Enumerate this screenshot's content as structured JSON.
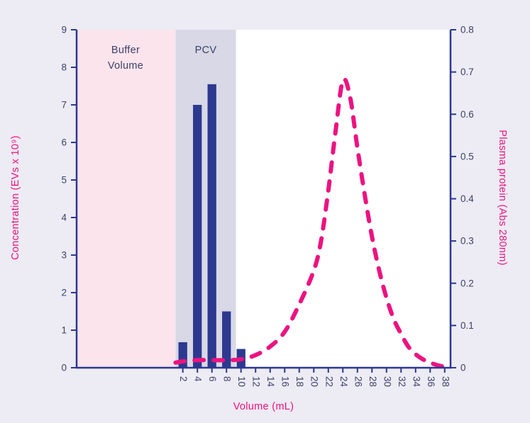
{
  "page": {
    "background_color": "#edebf4"
  },
  "chart_data": {
    "type": "combo-bar-line",
    "title": "",
    "grid": false,
    "x_axis": {
      "label": "Volume (mL)",
      "ticks": [
        2,
        4,
        6,
        8,
        10,
        12,
        14,
        16,
        18,
        20,
        22,
        24,
        26,
        28,
        30,
        32,
        34,
        36,
        38
      ],
      "xlim": [
        -12.6,
        38.8
      ]
    },
    "y_left": {
      "label": "Concentration (EVs x 10⁹)",
      "ticks": [
        "0",
        "1",
        "2",
        "3",
        "4",
        "5",
        "6",
        "7",
        "8",
        "9"
      ],
      "lim": [
        0,
        9
      ]
    },
    "y_right": {
      "label": "Plasma protein (Abs 280nm)",
      "ticks": [
        "0",
        "0.1",
        "0.2",
        "0.3",
        "0.4",
        "0.5",
        "0.6",
        "0.7",
        "0.8"
      ],
      "lim": [
        0,
        0.8
      ]
    },
    "regions": [
      {
        "label": "Buffer Volume",
        "x0": "axis-start",
        "x1": 1.0,
        "color": "#fce4ed"
      },
      {
        "label": "PCV",
        "x0": 1.0,
        "x1": 9.3,
        "color": "#d8d8e6"
      }
    ],
    "bars": {
      "name": "EV concentration",
      "axis": "left",
      "x": [
        2,
        4,
        6,
        8,
        10
      ],
      "values": [
        0.68,
        7.0,
        7.55,
        1.5,
        0.5
      ],
      "width_ml": 1.2,
      "color": "#2c398f"
    },
    "line": {
      "name": "Plasma protein",
      "axis": "right",
      "style": "dashed",
      "color": "#ec1380",
      "points": [
        [
          1,
          0.012
        ],
        [
          2,
          0.015
        ],
        [
          4,
          0.018
        ],
        [
          6,
          0.018
        ],
        [
          8,
          0.018
        ],
        [
          10,
          0.02
        ],
        [
          12,
          0.03
        ],
        [
          14,
          0.05
        ],
        [
          16,
          0.085
        ],
        [
          18,
          0.15
        ],
        [
          20,
          0.23
        ],
        [
          21,
          0.3
        ],
        [
          22,
          0.42
        ],
        [
          23,
          0.56
        ],
        [
          24,
          0.68
        ],
        [
          25,
          0.64
        ],
        [
          26,
          0.52
        ],
        [
          27,
          0.41
        ],
        [
          28,
          0.31
        ],
        [
          29,
          0.23
        ],
        [
          30,
          0.165
        ],
        [
          31,
          0.115
        ],
        [
          32,
          0.08
        ],
        [
          33,
          0.05
        ],
        [
          34,
          0.032
        ],
        [
          35,
          0.02
        ],
        [
          36,
          0.012
        ],
        [
          37,
          0.006
        ],
        [
          38,
          0.002
        ]
      ]
    },
    "colors": {
      "navy": "#2c398f",
      "pink": "#ec1380",
      "tick_text": "#3c4169"
    }
  }
}
